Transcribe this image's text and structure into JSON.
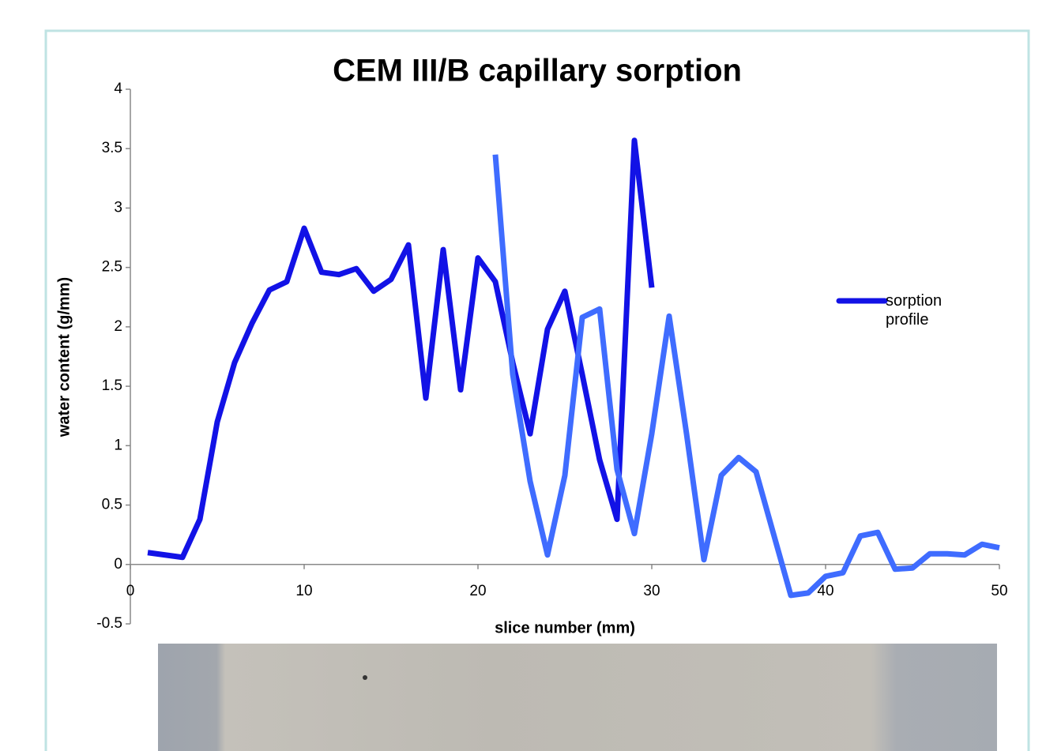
{
  "chart_data": {
    "type": "line",
    "title": "CEM III/B capillary sorption",
    "xlabel": "slice number (mm)",
    "ylabel": "water content (g/mm)",
    "x": [
      1,
      2,
      3,
      4,
      5,
      6,
      7,
      8,
      9,
      10,
      11,
      12,
      13,
      14,
      15,
      16,
      17,
      18,
      19,
      20,
      21,
      22,
      23,
      24,
      25,
      26,
      27,
      28,
      29,
      30,
      31,
      32,
      33,
      34,
      35,
      36,
      37,
      38,
      39,
      40,
      41,
      42,
      43,
      44,
      45,
      46,
      47,
      48,
      49,
      50
    ],
    "series": [
      {
        "name": "sorption profile",
        "color": "#1212e6",
        "values": [
          0.1,
          0.08,
          0.06,
          0.38,
          1.2,
          1.7,
          2.03,
          2.31,
          2.38,
          2.83,
          2.46,
          2.44,
          2.49,
          2.3,
          2.4,
          2.69,
          1.4,
          2.65,
          1.47,
          2.58,
          2.38,
          1.7,
          1.1,
          1.98,
          2.3,
          1.6,
          0.88,
          0.38,
          3.57,
          2.33,
          null,
          null,
          null,
          null,
          null,
          null,
          null,
          null,
          null,
          null,
          null,
          null,
          null,
          null,
          null,
          null,
          null,
          null,
          null,
          null
        ]
      },
      {
        "color": "#3f6cff",
        "values": [
          null,
          null,
          null,
          null,
          null,
          null,
          null,
          null,
          null,
          null,
          null,
          null,
          null,
          null,
          null,
          null,
          null,
          null,
          null,
          null,
          3.45,
          1.6,
          0.7,
          0.08,
          0.75,
          2.08,
          2.15,
          0.8,
          0.26,
          1.1,
          2.09,
          1.1,
          0.04,
          0.75,
          0.9,
          0.78,
          0.26,
          -0.26,
          -0.24,
          -0.1,
          -0.07,
          0.24,
          0.27,
          -0.04,
          -0.03,
          0.09,
          0.09,
          0.08,
          0.17,
          0.14
        ]
      }
    ],
    "xlim": [
      0,
      50
    ],
    "xticks": [
      0,
      10,
      20,
      30,
      40,
      50
    ],
    "ylim": [
      -0.5,
      4
    ],
    "yticks": [
      -0.5,
      0,
      0.5,
      1,
      1.5,
      2,
      2.5,
      3,
      3.5,
      4
    ],
    "grid": false,
    "legend": "right"
  }
}
